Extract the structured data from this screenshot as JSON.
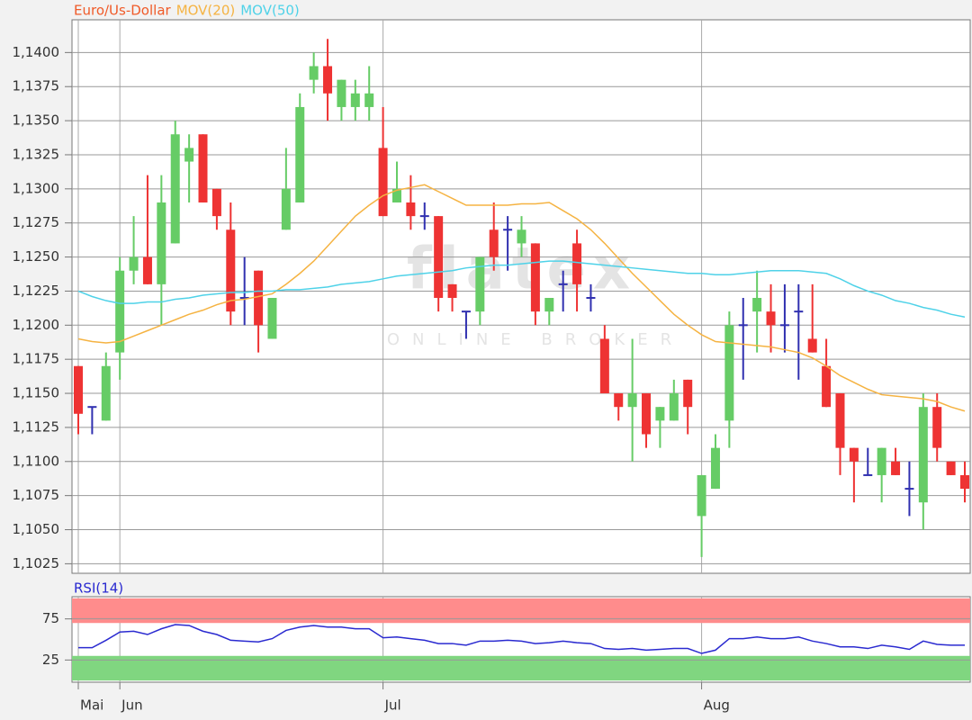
{
  "watermark": {
    "logo": "flatex",
    "tagline": "ONLINE BROKER"
  },
  "chart_data": [
    {
      "type": "candlestick",
      "name": "Euro/Us-Dollar",
      "name_color": "#f05a28",
      "up_color": "#66cc66",
      "down_color": "#ee3333",
      "doji_color": "#3030b0",
      "categories": [
        "Mai",
        null,
        null,
        "Jun",
        null,
        null,
        null,
        null,
        null,
        null,
        null,
        null,
        null,
        null,
        null,
        null,
        null,
        null,
        null,
        null,
        null,
        null,
        "Jul",
        null,
        null,
        null,
        null,
        null,
        null,
        null,
        null,
        null,
        null,
        null,
        null,
        null,
        null,
        null,
        null,
        null,
        null,
        null,
        null,
        null,
        null,
        "Aug",
        null,
        null,
        null,
        null,
        null,
        null,
        null,
        null,
        null,
        null,
        null,
        null,
        null,
        null,
        null,
        null,
        null,
        null,
        null
      ],
      "open": [
        1.117,
        1.114,
        1.113,
        1.118,
        1.124,
        1.125,
        1.123,
        1.126,
        1.132,
        1.134,
        1.13,
        1.127,
        1.122,
        1.124,
        1.119,
        1.127,
        1.129,
        1.138,
        1.139,
        1.136,
        1.136,
        1.136,
        1.133,
        1.129,
        1.129,
        1.128,
        1.128,
        1.123,
        1.121,
        1.121,
        1.127,
        1.127,
        1.126,
        1.126,
        1.121,
        1.123,
        1.126,
        1.122,
        1.119,
        1.115,
        1.114,
        1.115,
        1.113,
        1.113,
        1.116,
        1.106,
        1.108,
        1.113,
        1.12,
        1.121,
        1.121,
        1.12,
        1.121,
        1.119,
        1.117,
        1.115,
        1.111,
        1.109,
        1.109,
        1.11,
        1.108,
        1.107,
        1.114,
        1.11,
        1.109
      ],
      "high": [
        1.117,
        1.114,
        1.118,
        1.125,
        1.128,
        1.131,
        1.131,
        1.135,
        1.134,
        1.134,
        1.13,
        1.129,
        1.125,
        1.124,
        1.122,
        1.133,
        1.137,
        1.14,
        1.141,
        1.138,
        1.138,
        1.139,
        1.136,
        1.132,
        1.131,
        1.129,
        1.128,
        1.123,
        1.121,
        1.125,
        1.129,
        1.128,
        1.128,
        1.126,
        1.122,
        1.124,
        1.127,
        1.123,
        1.12,
        1.115,
        1.119,
        1.115,
        1.114,
        1.116,
        1.116,
        1.109,
        1.112,
        1.121,
        1.122,
        1.124,
        1.123,
        1.123,
        1.123,
        1.123,
        1.119,
        1.115,
        1.111,
        1.111,
        1.111,
        1.111,
        1.11,
        1.115,
        1.115,
        1.11,
        1.11
      ],
      "low": [
        1.112,
        1.112,
        1.113,
        1.116,
        1.123,
        1.123,
        1.12,
        1.126,
        1.129,
        1.129,
        1.127,
        1.12,
        1.12,
        1.118,
        1.119,
        1.127,
        1.129,
        1.137,
        1.135,
        1.135,
        1.135,
        1.135,
        1.128,
        1.129,
        1.127,
        1.127,
        1.121,
        1.121,
        1.119,
        1.12,
        1.124,
        1.124,
        1.125,
        1.12,
        1.12,
        1.121,
        1.121,
        1.121,
        1.115,
        1.113,
        1.11,
        1.111,
        1.111,
        1.113,
        1.112,
        1.103,
        1.108,
        1.111,
        1.116,
        1.118,
        1.118,
        1.118,
        1.116,
        1.118,
        1.114,
        1.109,
        1.107,
        1.109,
        1.107,
        1.109,
        1.106,
        1.105,
        1.11,
        1.109,
        1.107
      ],
      "close": [
        1.1135,
        1.114,
        1.117,
        1.124,
        1.125,
        1.123,
        1.129,
        1.134,
        1.133,
        1.129,
        1.128,
        1.121,
        1.122,
        1.12,
        1.122,
        1.13,
        1.136,
        1.139,
        1.137,
        1.138,
        1.137,
        1.137,
        1.128,
        1.13,
        1.128,
        1.128,
        1.122,
        1.122,
        1.121,
        1.125,
        1.125,
        1.127,
        1.127,
        1.121,
        1.122,
        1.123,
        1.123,
        1.122,
        1.115,
        1.114,
        1.115,
        1.112,
        1.114,
        1.115,
        1.114,
        1.109,
        1.111,
        1.12,
        1.12,
        1.122,
        1.12,
        1.12,
        1.121,
        1.118,
        1.114,
        1.111,
        1.11,
        1.109,
        1.111,
        1.109,
        1.108,
        1.114,
        1.111,
        1.109,
        1.108
      ],
      "overlays": [
        {
          "name": "MOV(20)",
          "color": "#f5b342",
          "values": [
            1.119,
            1.1188,
            1.1187,
            1.1188,
            1.1192,
            1.1196,
            1.12,
            1.1204,
            1.1208,
            1.1211,
            1.1215,
            1.1218,
            1.1219,
            1.1221,
            1.1223,
            1.123,
            1.1238,
            1.1247,
            1.1258,
            1.1269,
            1.128,
            1.1288,
            1.1295,
            1.1299,
            1.1301,
            1.1303,
            1.1298,
            1.1293,
            1.1288,
            1.1288,
            1.1288,
            1.1288,
            1.1289,
            1.1289,
            1.129,
            1.1284,
            1.1278,
            1.127,
            1.126,
            1.1249,
            1.1238,
            1.1228,
            1.1218,
            1.1208,
            1.12,
            1.1193,
            1.1188,
            1.1187,
            1.1186,
            1.1185,
            1.1184,
            1.1182,
            1.118,
            1.1176,
            1.117,
            1.1163,
            1.1158,
            1.1153,
            1.1149,
            1.1148,
            1.1147,
            1.1146,
            1.1144,
            1.114,
            1.1137
          ]
        },
        {
          "name": "MOV(50)",
          "color": "#4fd2e8",
          "values": [
            1.1225,
            1.1221,
            1.1218,
            1.1216,
            1.1216,
            1.1217,
            1.1217,
            1.1219,
            1.122,
            1.1222,
            1.1223,
            1.1224,
            1.1224,
            1.1225,
            1.1225,
            1.1226,
            1.1226,
            1.1227,
            1.1228,
            1.123,
            1.1231,
            1.1232,
            1.1234,
            1.1236,
            1.1237,
            1.1238,
            1.1239,
            1.124,
            1.1242,
            1.1243,
            1.1244,
            1.1244,
            1.1245,
            1.1246,
            1.1247,
            1.1247,
            1.1246,
            1.1245,
            1.1244,
            1.1243,
            1.1242,
            1.1241,
            1.124,
            1.1239,
            1.1238,
            1.1238,
            1.1237,
            1.1237,
            1.1238,
            1.1239,
            1.124,
            1.124,
            1.124,
            1.1239,
            1.1238,
            1.1234,
            1.1229,
            1.1225,
            1.1222,
            1.1218,
            1.1216,
            1.1213,
            1.1211,
            1.1208,
            1.1206
          ]
        }
      ],
      "ylim": [
        1.1018,
        1.1424
      ],
      "yticks": [
        {
          "value": 1.1025,
          "label": "1,1025"
        },
        {
          "value": 1.105,
          "label": "1,1050"
        },
        {
          "value": 1.1075,
          "label": "1,1075"
        },
        {
          "value": 1.11,
          "label": "1,1100"
        },
        {
          "value": 1.1125,
          "label": "1,1125"
        },
        {
          "value": 1.115,
          "label": "1,1150"
        },
        {
          "value": 1.1175,
          "label": "1,1175"
        },
        {
          "value": 1.12,
          "label": "1,1200"
        },
        {
          "value": 1.1225,
          "label": "1,1225"
        },
        {
          "value": 1.125,
          "label": "1,1250"
        },
        {
          "value": 1.1275,
          "label": "1,1275"
        },
        {
          "value": 1.13,
          "label": "1,1300"
        },
        {
          "value": 1.1325,
          "label": "1,1325"
        },
        {
          "value": 1.135,
          "label": "1,1350"
        },
        {
          "value": 1.1375,
          "label": "1,1375"
        },
        {
          "value": 1.14,
          "label": "1,1400"
        }
      ],
      "grid": true
    },
    {
      "type": "line",
      "series": [
        {
          "name": "RSI(14)",
          "color": "#2a2ad0",
          "values": [
            40,
            40,
            49,
            59,
            60,
            56,
            63,
            68,
            67,
            60,
            56,
            49,
            48,
            47,
            51,
            61,
            65,
            67,
            65,
            65,
            63,
            63,
            52,
            53,
            51,
            49,
            45,
            45,
            43,
            48,
            48,
            49,
            48,
            45,
            46,
            48,
            46,
            45,
            39,
            38,
            39,
            37,
            38,
            39,
            39,
            33,
            37,
            51,
            51,
            53,
            51,
            51,
            53,
            48,
            45,
            41,
            41,
            39,
            43,
            41,
            38,
            48,
            44,
            43,
            43
          ]
        }
      ],
      "bands": [
        {
          "range": [
            70,
            100
          ],
          "color": "#ff8c8c"
        },
        {
          "range": [
            0,
            30
          ],
          "color": "#80d680"
        }
      ],
      "ylim": [
        -2,
        102
      ],
      "yticks": [
        25,
        75
      ],
      "grid": true
    }
  ]
}
